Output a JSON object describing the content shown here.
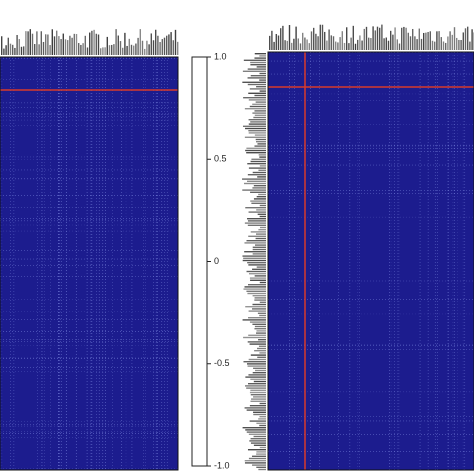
{
  "chart_data": {
    "type": "heatmap",
    "color": "#1c1c8e",
    "ylim": [
      -1,
      1
    ],
    "yticks": [
      {
        "value": 1,
        "label": "1.0"
      },
      0.5,
      0,
      -0.5,
      {
        "value": -1,
        "label": "-1.0"
      }
    ]
  }
}
